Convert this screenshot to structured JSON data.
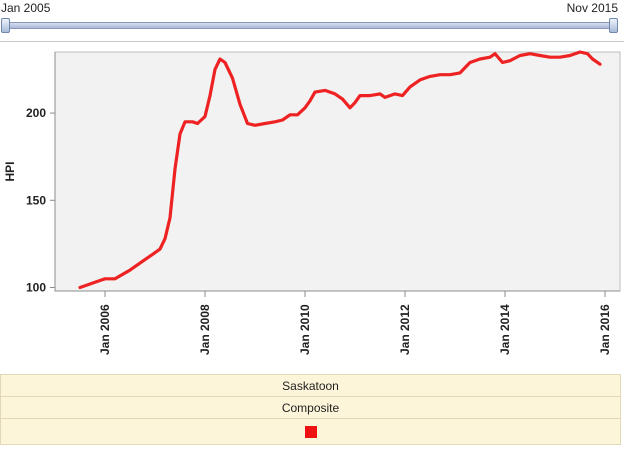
{
  "range_slider": {
    "start_label": "Jan 2005",
    "end_label": "Nov 2015"
  },
  "legend": {
    "location": "Saskatoon",
    "measure": "Composite",
    "swatch_color": "#ee1111"
  },
  "colors": {
    "series": "#ee2222",
    "plot_background": "#f2f2f2",
    "axis": "#8c8c8c"
  },
  "chart_data": {
    "type": "line",
    "ylabel": "HPI",
    "xlabel": "",
    "title": "",
    "xlim": [
      2005.0,
      2016.3
    ],
    "ylim": [
      98,
      235
    ],
    "y_ticks": [
      100,
      150,
      200
    ],
    "x_ticks": [
      {
        "value": 2006,
        "label": "Jan 2006"
      },
      {
        "value": 2008,
        "label": "Jan 2008"
      },
      {
        "value": 2010,
        "label": "Jan 2010"
      },
      {
        "value": 2012,
        "label": "Jan 2012"
      },
      {
        "value": 2014,
        "label": "Jan 2014"
      },
      {
        "value": 2016,
        "label": "Jan 2016"
      }
    ],
    "grid": false,
    "series": [
      {
        "color": "#ee2222",
        "x": [
          2005.5,
          2005.7,
          2005.9,
          2006.0,
          2006.2,
          2006.5,
          2006.8,
          2006.95,
          2007.1,
          2007.2,
          2007.3,
          2007.4,
          2007.5,
          2007.6,
          2007.75,
          2007.85,
          2008.0,
          2008.1,
          2008.2,
          2008.3,
          2008.4,
          2008.55,
          2008.7,
          2008.85,
          2009.0,
          2009.2,
          2009.4,
          2009.55,
          2009.7,
          2009.85,
          2010.0,
          2010.1,
          2010.2,
          2010.4,
          2010.6,
          2010.75,
          2010.9,
          2011.0,
          2011.1,
          2011.3,
          2011.5,
          2011.6,
          2011.8,
          2011.95,
          2012.1,
          2012.3,
          2012.5,
          2012.7,
          2012.9,
          2013.1,
          2013.3,
          2013.5,
          2013.7,
          2013.8,
          2013.95,
          2014.1,
          2014.3,
          2014.5,
          2014.7,
          2014.9,
          2015.1,
          2015.3,
          2015.5,
          2015.65,
          2015.75,
          2015.9
        ],
        "values": [
          100,
          102,
          104,
          105,
          105,
          110,
          116,
          119,
          122,
          128,
          140,
          168,
          188,
          195,
          195,
          194,
          198,
          210,
          225,
          231,
          229,
          220,
          205,
          194,
          193,
          194,
          195,
          196,
          199,
          199,
          203,
          207,
          212,
          213,
          211,
          208,
          203,
          206,
          210,
          210,
          211,
          209,
          211,
          210,
          215,
          219,
          221,
          222,
          222,
          223,
          229,
          231,
          232,
          234,
          229,
          230,
          233,
          234,
          233,
          232,
          232,
          233,
          235,
          234,
          231,
          228
        ]
      }
    ]
  }
}
